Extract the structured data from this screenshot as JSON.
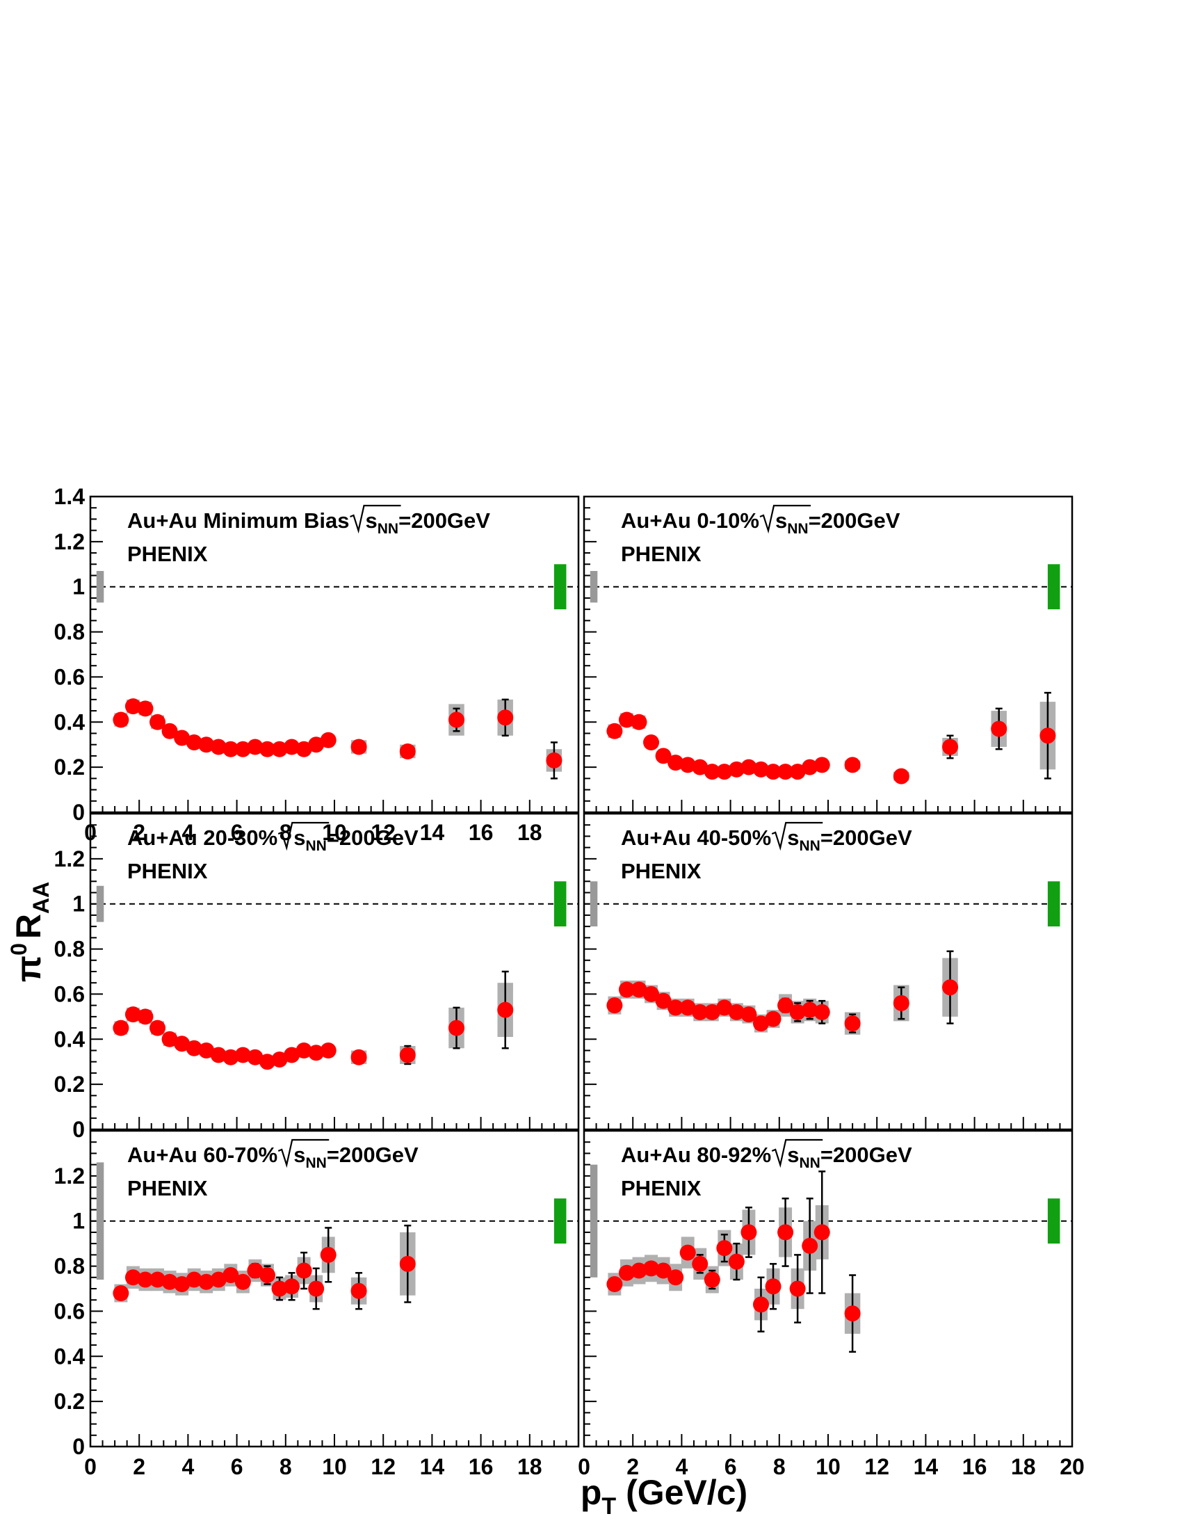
{
  "figure": {
    "y_axis_label": {
      "pi": "π",
      "zero": "0",
      "r": "R",
      "sub": "AA"
    },
    "x_axis_label": {
      "p": "p",
      "sub": "T",
      "unit": " (GeV/c)"
    }
  },
  "colors": {
    "marker": "#ff0000",
    "systematic_box": "#b0b0b0",
    "normalization_gray": "#999999",
    "normalization_green": "#11a011",
    "reference_line": "#000000"
  },
  "chart_data": [
    {
      "type": "scatter",
      "panel": "top-left",
      "title": "Au+Au Minimum Bias",
      "energy_label": {
        "sqrt_s": "s",
        "sub": "NN",
        "value": "=200GeV"
      },
      "experiment": "PHENIX",
      "xlim": [
        0,
        20
      ],
      "ylim": [
        0,
        1.4
      ],
      "xticks": [
        "0",
        "2",
        "4",
        "6",
        "8",
        "10",
        "12",
        "14",
        "16",
        "18"
      ],
      "yticks": [
        "0",
        "0.2",
        "0.4",
        "0.6",
        "0.8",
        "1",
        "1.2",
        "1.4"
      ],
      "reference_line": 1,
      "normalization_gray": [
        0.93,
        1.07
      ],
      "normalization_green": [
        0.9,
        1.1
      ],
      "points": [
        {
          "x": 1.25,
          "y": 0.41,
          "syst": 0.03
        },
        {
          "x": 1.75,
          "y": 0.47,
          "syst": 0.03
        },
        {
          "x": 2.25,
          "y": 0.46,
          "syst": 0.03
        },
        {
          "x": 2.75,
          "y": 0.4,
          "syst": 0.03
        },
        {
          "x": 3.25,
          "y": 0.36,
          "syst": 0.02
        },
        {
          "x": 3.75,
          "y": 0.33,
          "syst": 0.02
        },
        {
          "x": 4.25,
          "y": 0.31,
          "syst": 0.02
        },
        {
          "x": 4.75,
          "y": 0.3,
          "syst": 0.02
        },
        {
          "x": 5.25,
          "y": 0.29,
          "syst": 0.02
        },
        {
          "x": 5.75,
          "y": 0.28,
          "syst": 0.02
        },
        {
          "x": 6.25,
          "y": 0.28,
          "syst": 0.02
        },
        {
          "x": 6.75,
          "y": 0.29,
          "syst": 0.02
        },
        {
          "x": 7.25,
          "y": 0.28,
          "syst": 0.02
        },
        {
          "x": 7.75,
          "y": 0.28,
          "syst": 0.02
        },
        {
          "x": 8.25,
          "y": 0.29,
          "syst": 0.02
        },
        {
          "x": 8.75,
          "y": 0.28,
          "syst": 0.02
        },
        {
          "x": 9.25,
          "y": 0.3,
          "syst": 0.02
        },
        {
          "x": 9.75,
          "y": 0.32,
          "syst": 0.02
        },
        {
          "x": 11,
          "y": 0.29,
          "syst": 0.03,
          "err": 0.02
        },
        {
          "x": 13,
          "y": 0.27,
          "syst": 0.03,
          "err": 0.02
        },
        {
          "x": 15,
          "y": 0.41,
          "syst": 0.07,
          "err": 0.05
        },
        {
          "x": 17,
          "y": 0.42,
          "syst": 0.08,
          "err": 0.08
        },
        {
          "x": 19,
          "y": 0.23,
          "syst": 0.05,
          "err": 0.08
        }
      ]
    },
    {
      "type": "scatter",
      "panel": "top-right",
      "title": "Au+Au 0-10%",
      "energy_label": {
        "sqrt_s": "s",
        "sub": "NN",
        "value": "=200GeV"
      },
      "experiment": "PHENIX",
      "xlim": [
        0,
        20
      ],
      "ylim": [
        0,
        1.4
      ],
      "reference_line": 1,
      "normalization_gray": [
        0.93,
        1.07
      ],
      "normalization_green": [
        0.9,
        1.1
      ],
      "points": [
        {
          "x": 1.25,
          "y": 0.36,
          "syst": 0.03
        },
        {
          "x": 1.75,
          "y": 0.41,
          "syst": 0.03
        },
        {
          "x": 2.25,
          "y": 0.4,
          "syst": 0.03
        },
        {
          "x": 2.75,
          "y": 0.31,
          "syst": 0.02
        },
        {
          "x": 3.25,
          "y": 0.25,
          "syst": 0.02
        },
        {
          "x": 3.75,
          "y": 0.22,
          "syst": 0.02
        },
        {
          "x": 4.25,
          "y": 0.21,
          "syst": 0.02
        },
        {
          "x": 4.75,
          "y": 0.2,
          "syst": 0.02
        },
        {
          "x": 5.25,
          "y": 0.18,
          "syst": 0.02
        },
        {
          "x": 5.75,
          "y": 0.18,
          "syst": 0.02
        },
        {
          "x": 6.25,
          "y": 0.19,
          "syst": 0.02
        },
        {
          "x": 6.75,
          "y": 0.2,
          "syst": 0.02
        },
        {
          "x": 7.25,
          "y": 0.19,
          "syst": 0.02
        },
        {
          "x": 7.75,
          "y": 0.18,
          "syst": 0.02
        },
        {
          "x": 8.25,
          "y": 0.18,
          "syst": 0.02
        },
        {
          "x": 8.75,
          "y": 0.18,
          "syst": 0.02
        },
        {
          "x": 9.25,
          "y": 0.2,
          "syst": 0.02
        },
        {
          "x": 9.75,
          "y": 0.21,
          "syst": 0.02
        },
        {
          "x": 11,
          "y": 0.21,
          "syst": 0.02,
          "err": 0.02
        },
        {
          "x": 13,
          "y": 0.16,
          "syst": 0.02,
          "err": 0.02
        },
        {
          "x": 15,
          "y": 0.29,
          "syst": 0.04,
          "err": 0.05
        },
        {
          "x": 17,
          "y": 0.37,
          "syst": 0.08,
          "err": 0.09
        },
        {
          "x": 19,
          "y": 0.34,
          "syst": 0.15,
          "err": 0.19
        }
      ]
    },
    {
      "type": "scatter",
      "panel": "middle-left",
      "title": "Au+Au 20-30%",
      "energy_label": {
        "sqrt_s": "s",
        "sub": "NN",
        "value": "=200GeV"
      },
      "experiment": "PHENIX",
      "xlim": [
        0,
        20
      ],
      "ylim": [
        0,
        1.4
      ],
      "yticks": [
        "0",
        "0.2",
        "0.4",
        "0.6",
        "0.8",
        "1",
        "1.2"
      ],
      "reference_line": 1,
      "normalization_gray": [
        0.92,
        1.08
      ],
      "normalization_green": [
        0.9,
        1.1
      ],
      "points": [
        {
          "x": 1.25,
          "y": 0.45,
          "syst": 0.03
        },
        {
          "x": 1.75,
          "y": 0.51,
          "syst": 0.03
        },
        {
          "x": 2.25,
          "y": 0.5,
          "syst": 0.03
        },
        {
          "x": 2.75,
          "y": 0.45,
          "syst": 0.03
        },
        {
          "x": 3.25,
          "y": 0.4,
          "syst": 0.03
        },
        {
          "x": 3.75,
          "y": 0.38,
          "syst": 0.02
        },
        {
          "x": 4.25,
          "y": 0.36,
          "syst": 0.02
        },
        {
          "x": 4.75,
          "y": 0.35,
          "syst": 0.02
        },
        {
          "x": 5.25,
          "y": 0.33,
          "syst": 0.02
        },
        {
          "x": 5.75,
          "y": 0.32,
          "syst": 0.02
        },
        {
          "x": 6.25,
          "y": 0.33,
          "syst": 0.02
        },
        {
          "x": 6.75,
          "y": 0.32,
          "syst": 0.02
        },
        {
          "x": 7.25,
          "y": 0.3,
          "syst": 0.02
        },
        {
          "x": 7.75,
          "y": 0.31,
          "syst": 0.02
        },
        {
          "x": 8.25,
          "y": 0.33,
          "syst": 0.02
        },
        {
          "x": 8.75,
          "y": 0.35,
          "syst": 0.02
        },
        {
          "x": 9.25,
          "y": 0.34,
          "syst": 0.02
        },
        {
          "x": 9.75,
          "y": 0.35,
          "syst": 0.02
        },
        {
          "x": 11,
          "y": 0.32,
          "syst": 0.03,
          "err": 0.02
        },
        {
          "x": 13,
          "y": 0.33,
          "syst": 0.04,
          "err": 0.04
        },
        {
          "x": 15,
          "y": 0.45,
          "syst": 0.09,
          "err": 0.09
        },
        {
          "x": 17,
          "y": 0.53,
          "syst": 0.12,
          "err": 0.17
        }
      ]
    },
    {
      "type": "scatter",
      "panel": "middle-right",
      "title": "Au+Au 40-50%",
      "energy_label": {
        "sqrt_s": "s",
        "sub": "NN",
        "value": "=200GeV"
      },
      "experiment": "PHENIX",
      "xlim": [
        0,
        20
      ],
      "ylim": [
        0,
        1.4
      ],
      "reference_line": 1,
      "normalization_gray": [
        0.9,
        1.1
      ],
      "normalization_green": [
        0.9,
        1.1
      ],
      "points": [
        {
          "x": 1.25,
          "y": 0.55,
          "syst": 0.04
        },
        {
          "x": 1.75,
          "y": 0.62,
          "syst": 0.04
        },
        {
          "x": 2.25,
          "y": 0.62,
          "syst": 0.04
        },
        {
          "x": 2.75,
          "y": 0.6,
          "syst": 0.04
        },
        {
          "x": 3.25,
          "y": 0.57,
          "syst": 0.04
        },
        {
          "x": 3.75,
          "y": 0.54,
          "syst": 0.04
        },
        {
          "x": 4.25,
          "y": 0.54,
          "syst": 0.04
        },
        {
          "x": 4.75,
          "y": 0.52,
          "syst": 0.04
        },
        {
          "x": 5.25,
          "y": 0.52,
          "syst": 0.04
        },
        {
          "x": 5.75,
          "y": 0.54,
          "syst": 0.04
        },
        {
          "x": 6.25,
          "y": 0.52,
          "syst": 0.04
        },
        {
          "x": 6.75,
          "y": 0.51,
          "syst": 0.04
        },
        {
          "x": 7.25,
          "y": 0.47,
          "syst": 0.04
        },
        {
          "x": 7.75,
          "y": 0.49,
          "syst": 0.04
        },
        {
          "x": 8.25,
          "y": 0.55,
          "syst": 0.05,
          "err": 0.03
        },
        {
          "x": 8.75,
          "y": 0.52,
          "syst": 0.05,
          "err": 0.04
        },
        {
          "x": 9.25,
          "y": 0.53,
          "syst": 0.05,
          "err": 0.04
        },
        {
          "x": 9.75,
          "y": 0.52,
          "syst": 0.05,
          "err": 0.05
        },
        {
          "x": 11,
          "y": 0.47,
          "syst": 0.05,
          "err": 0.04
        },
        {
          "x": 13,
          "y": 0.56,
          "syst": 0.08,
          "err": 0.07
        },
        {
          "x": 15,
          "y": 0.63,
          "syst": 0.13,
          "err": 0.16
        }
      ]
    },
    {
      "type": "scatter",
      "panel": "bottom-left",
      "title": "Au+Au 60-70%",
      "energy_label": {
        "sqrt_s": "s",
        "sub": "NN",
        "value": "=200GeV"
      },
      "experiment": "PHENIX",
      "xlim": [
        0,
        20
      ],
      "ylim": [
        0,
        1.4
      ],
      "xticks": [
        "0",
        "2",
        "4",
        "6",
        "8",
        "10",
        "12",
        "14",
        "16",
        "18"
      ],
      "yticks": [
        "0",
        "0.2",
        "0.4",
        "0.6",
        "0.8",
        "1",
        "1.2"
      ],
      "reference_line": 1,
      "normalization_gray": [
        0.74,
        1.26
      ],
      "normalization_green": [
        0.9,
        1.1
      ],
      "points": [
        {
          "x": 1.25,
          "y": 0.68,
          "syst": 0.04
        },
        {
          "x": 1.75,
          "y": 0.75,
          "syst": 0.05
        },
        {
          "x": 2.25,
          "y": 0.74,
          "syst": 0.05
        },
        {
          "x": 2.75,
          "y": 0.74,
          "syst": 0.05
        },
        {
          "x": 3.25,
          "y": 0.73,
          "syst": 0.05
        },
        {
          "x": 3.75,
          "y": 0.72,
          "syst": 0.05
        },
        {
          "x": 4.25,
          "y": 0.74,
          "syst": 0.05
        },
        {
          "x": 4.75,
          "y": 0.73,
          "syst": 0.05
        },
        {
          "x": 5.25,
          "y": 0.74,
          "syst": 0.05
        },
        {
          "x": 5.75,
          "y": 0.76,
          "syst": 0.05
        },
        {
          "x": 6.25,
          "y": 0.73,
          "syst": 0.05
        },
        {
          "x": 6.75,
          "y": 0.78,
          "syst": 0.05,
          "err": 0.03
        },
        {
          "x": 7.25,
          "y": 0.76,
          "syst": 0.05,
          "err": 0.04
        },
        {
          "x": 7.75,
          "y": 0.7,
          "syst": 0.05,
          "err": 0.05
        },
        {
          "x": 8.25,
          "y": 0.71,
          "syst": 0.05,
          "err": 0.06
        },
        {
          "x": 8.75,
          "y": 0.78,
          "syst": 0.06,
          "err": 0.08
        },
        {
          "x": 9.25,
          "y": 0.7,
          "syst": 0.06,
          "err": 0.09
        },
        {
          "x": 9.75,
          "y": 0.85,
          "syst": 0.08,
          "err": 0.12
        },
        {
          "x": 11,
          "y": 0.69,
          "syst": 0.06,
          "err": 0.08
        },
        {
          "x": 13,
          "y": 0.81,
          "syst": 0.14,
          "err": 0.17
        }
      ]
    },
    {
      "type": "scatter",
      "panel": "bottom-right",
      "title": "Au+Au 80-92%",
      "energy_label": {
        "sqrt_s": "s",
        "sub": "NN",
        "value": "=200GeV"
      },
      "experiment": "PHENIX",
      "xlim": [
        0,
        20
      ],
      "ylim": [
        0,
        1.4
      ],
      "xticks": [
        "0",
        "2",
        "4",
        "6",
        "8",
        "10",
        "12",
        "14",
        "16",
        "18",
        "20"
      ],
      "reference_line": 1,
      "normalization_gray": [
        0.75,
        1.25
      ],
      "normalization_green": [
        0.9,
        1.1
      ],
      "points": [
        {
          "x": 1.25,
          "y": 0.72,
          "syst": 0.05
        },
        {
          "x": 1.75,
          "y": 0.77,
          "syst": 0.06
        },
        {
          "x": 2.25,
          "y": 0.78,
          "syst": 0.06
        },
        {
          "x": 2.75,
          "y": 0.79,
          "syst": 0.06
        },
        {
          "x": 3.25,
          "y": 0.78,
          "syst": 0.06
        },
        {
          "x": 3.75,
          "y": 0.75,
          "syst": 0.06
        },
        {
          "x": 4.25,
          "y": 0.86,
          "syst": 0.07
        },
        {
          "x": 4.75,
          "y": 0.81,
          "syst": 0.07,
          "err": 0.04
        },
        {
          "x": 5.25,
          "y": 0.74,
          "syst": 0.06,
          "err": 0.04
        },
        {
          "x": 5.75,
          "y": 0.88,
          "syst": 0.08,
          "err": 0.06
        },
        {
          "x": 6.25,
          "y": 0.82,
          "syst": 0.08,
          "err": 0.08
        },
        {
          "x": 6.75,
          "y": 0.95,
          "syst": 0.1,
          "err": 0.11
        },
        {
          "x": 7.25,
          "y": 0.63,
          "syst": 0.07,
          "err": 0.12
        },
        {
          "x": 7.75,
          "y": 0.71,
          "syst": 0.08,
          "err": 0.1
        },
        {
          "x": 8.25,
          "y": 0.95,
          "syst": 0.11,
          "err": 0.15
        },
        {
          "x": 8.75,
          "y": 0.7,
          "syst": 0.09,
          "err": 0.15
        },
        {
          "x": 9.25,
          "y": 0.89,
          "syst": 0.11,
          "err": 0.21
        },
        {
          "x": 9.75,
          "y": 0.95,
          "syst": 0.12,
          "err": 0.27
        },
        {
          "x": 11,
          "y": 0.59,
          "syst": 0.09,
          "err": 0.17
        }
      ]
    }
  ]
}
